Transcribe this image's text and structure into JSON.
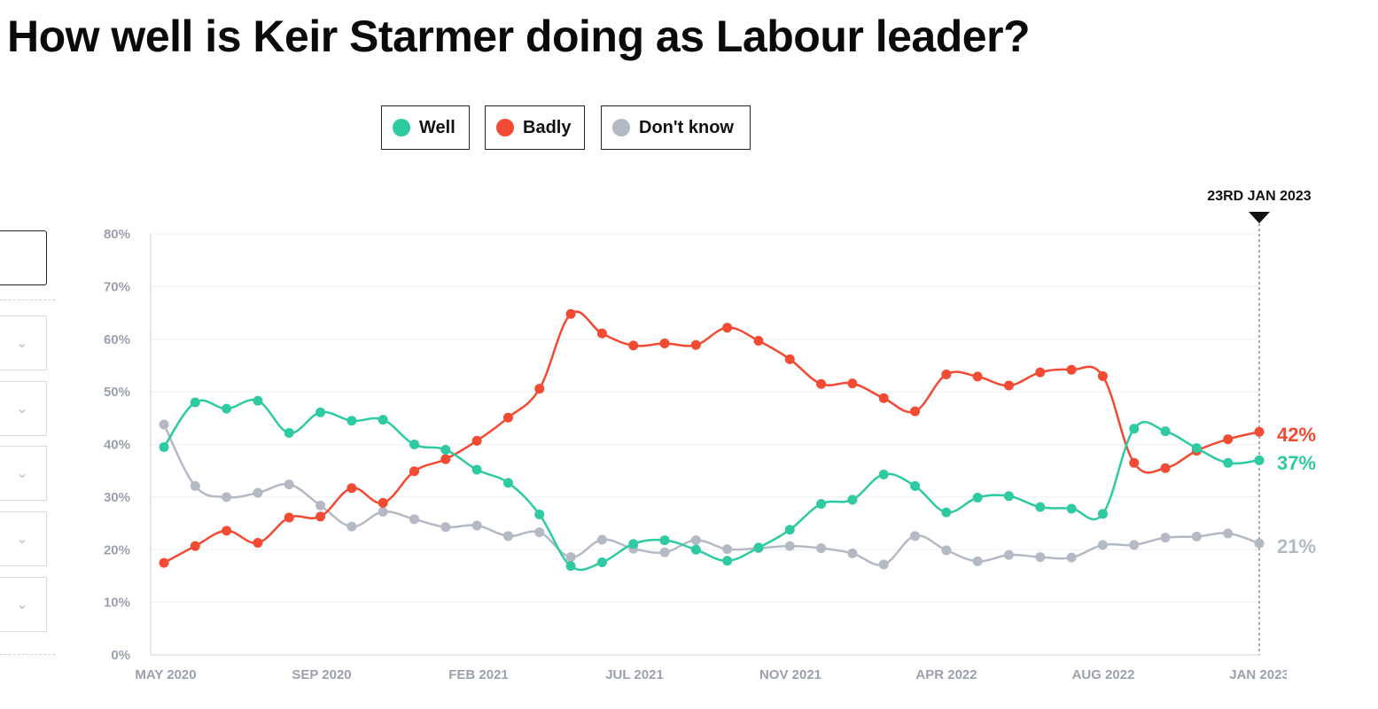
{
  "page": {
    "title": "How well is Keir Starmer doing as Labour leader?"
  },
  "legend": {
    "items": [
      {
        "label": "Well",
        "color": "#2ecaa1"
      },
      {
        "label": "Badly",
        "color": "#f24a33"
      },
      {
        "label": "Don't know",
        "color": "#b4b9c6"
      }
    ]
  },
  "sidebar": {
    "icons": [
      "chevron-down-icon",
      "chevron-down-icon",
      "chevron-down-icon",
      "chevron-down-icon",
      "chevron-down-icon"
    ]
  },
  "chart_data": {
    "type": "line",
    "title": "How well is Keir Starmer doing as Labour leader?",
    "xlabel": "",
    "ylabel": "",
    "ylim": [
      0,
      80
    ],
    "y_ticks": [
      0,
      10,
      20,
      30,
      40,
      50,
      60,
      70,
      80
    ],
    "y_tick_labels": [
      "0%",
      "10%",
      "20%",
      "30%",
      "40%",
      "50%",
      "60%",
      "70%",
      "80%"
    ],
    "x_tick_labels": [
      "MAY 2020",
      "SEP 2020",
      "FEB 2021",
      "JUL 2021",
      "NOV 2021",
      "APR 2022",
      "AUG 2022",
      "JAN 2023"
    ],
    "grid": true,
    "legend_position": "top",
    "marker_label": "23RD JAN 2023",
    "series": [
      {
        "name": "Well",
        "color": "#2ecaa1",
        "end_label": "37%",
        "values": [
          39.5,
          48,
          46.8,
          48.3,
          42.2,
          46.1,
          44.5,
          44.7,
          40,
          39,
          35.2,
          32.7,
          26.7,
          16.9,
          17.6,
          21.1,
          21.8,
          20,
          17.9,
          20.4,
          23.8,
          28.7,
          29.5,
          34.3,
          32.1,
          27.1,
          29.9,
          30.2,
          28.1,
          27.8,
          26.8,
          43,
          42.5,
          39.3,
          36.5,
          37
        ]
      },
      {
        "name": "Badly",
        "color": "#f24a33",
        "end_label": "42%",
        "values": [
          17.5,
          20.7,
          23.6,
          21.3,
          26.1,
          26.3,
          31.7,
          28.9,
          34.9,
          37.2,
          40.7,
          45.1,
          50.6,
          64.8,
          61.1,
          58.8,
          59.2,
          58.9,
          62.2,
          59.7,
          56.2,
          51.5,
          51.6,
          48.8,
          46.3,
          53.3,
          52.9,
          51.2,
          53.7,
          54.2,
          53,
          36.5,
          35.5,
          38.8,
          41,
          42.4
        ]
      },
      {
        "name": "Don't know",
        "color": "#b4b9c6",
        "end_label": "21%",
        "values": [
          43.8,
          32.1,
          30,
          30.8,
          32.4,
          28.4,
          24.4,
          27.2,
          25.8,
          24.3,
          24.6,
          22.6,
          23.3,
          18.6,
          21.9,
          20.2,
          19.5,
          21.8,
          20.1,
          20.3,
          20.7,
          20.3,
          19.3,
          17.2,
          22.6,
          19.9,
          17.8,
          19,
          18.6,
          18.5,
          20.9,
          20.9,
          22.3,
          22.5,
          23.1,
          21.2
        ]
      }
    ]
  }
}
